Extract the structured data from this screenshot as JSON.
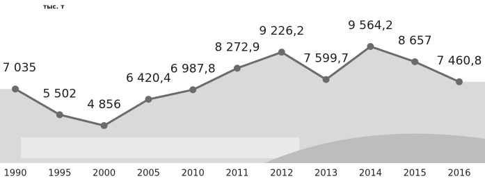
{
  "chart_data": {
    "type": "line",
    "unit": "тыс. т",
    "categories": [
      "1990",
      "1995",
      "2000",
      "2005",
      "2010",
      "2011",
      "2012",
      "2013",
      "2014",
      "2015",
      "2016"
    ],
    "values": [
      7035,
      5502,
      4856,
      6420.4,
      6987.8,
      8272.9,
      9226.2,
      7599.7,
      9564.2,
      8657,
      7460.8
    ],
    "value_labels": [
      "7 035",
      "5 502",
      "4 856",
      "6 420,4",
      "6 987,8",
      "8 272,9",
      "9 226,2",
      "7 599,7",
      "9 564,2",
      "8 657",
      "7 460,8"
    ],
    "color": "#6b6b6b",
    "area_color": "#d9d9d9"
  }
}
